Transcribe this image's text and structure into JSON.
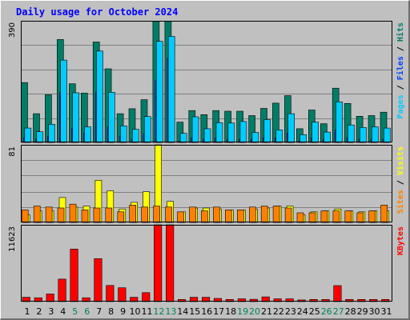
{
  "chart_data": {
    "type": "bar",
    "title": "Daily usage for October 2024",
    "days": [
      "1",
      "2",
      "3",
      "4",
      "5",
      "6",
      "7",
      "8",
      "9",
      "10",
      "11",
      "12",
      "13",
      "14",
      "15",
      "16",
      "17",
      "18",
      "19",
      "20",
      "21",
      "22",
      "23",
      "24",
      "25",
      "26",
      "27",
      "28",
      "29",
      "30",
      "31"
    ],
    "weekend_days": [
      "5",
      "6",
      "12",
      "13",
      "19",
      "20",
      "26",
      "27"
    ],
    "panels": [
      {
        "id": "top",
        "max_label": "390",
        "ylim": [
          0,
          390
        ],
        "grid_lines": [
          78,
          156,
          234,
          312
        ],
        "right_label_parts": [
          {
            "text": "Pages",
            "color": "#00ccff"
          },
          {
            "text": " / ",
            "color": "#000000"
          },
          {
            "text": "Files",
            "color": "#0040ff"
          },
          {
            "text": " / ",
            "color": "#000000"
          },
          {
            "text": "Hits",
            "color": "#007d66"
          }
        ],
        "series": [
          {
            "name": "Hits",
            "color": "#007d66",
            "values": [
              192,
              92,
              153,
              330,
              188,
              158,
              322,
              236,
              92,
              108,
              137,
              388,
              388,
              65,
              102,
              89,
              102,
              100,
              100,
              86,
              109,
              126,
              150,
              44,
              104,
              60,
              174,
              125,
              84,
              86,
              97
            ]
          },
          {
            "name": "Files",
            "color": "#0040ff",
            "values": [
              15,
              10,
              20,
              160,
              45,
              30,
              160,
              50,
              20,
              10,
              30,
              200,
              270,
              5,
              15,
              10,
              15,
              10,
              10,
              10,
              15,
              15,
              30,
              5,
              15,
              10,
              40,
              15,
              10,
              10,
              10
            ]
          },
          {
            "name": "Pages",
            "color": "#00ccff",
            "values": [
              46,
              34,
              58,
              264,
              159,
              50,
              293,
              161,
              53,
              42,
              83,
              324,
              340,
              29,
              82,
              44,
              63,
              62,
              67,
              32,
              73,
              40,
              92,
              25,
              65,
              33,
              130,
              56,
              48,
              50,
              46
            ]
          }
        ]
      },
      {
        "id": "middle",
        "max_label": "81",
        "ylim": [
          0,
          81
        ],
        "grid_lines": [
          16,
          32,
          49,
          65
        ],
        "right_label_parts": [
          {
            "text": "Sites",
            "color": "#ff8000"
          },
          {
            "text": " / ",
            "color": "#000000"
          },
          {
            "text": "Visits",
            "color": "#ffff00"
          }
        ],
        "series": [
          {
            "name": "Visits",
            "color": "#ffff00",
            "values": [
              8,
              12,
              12,
              26,
              16,
              17,
              44,
              33,
              14,
              21,
              32,
              81,
              22,
              11,
              15,
              15,
              14,
              13,
              13,
              14,
              15,
              17,
              17,
              8,
              11,
              12,
              14,
              12,
              11,
              12,
              12
            ]
          },
          {
            "name": "Sites",
            "color": "#ff8000",
            "values": [
              13,
              17,
              16,
              15,
              19,
              13,
              15,
              15,
              11,
              18,
              16,
              17,
              16,
              11,
              16,
              12,
              16,
              13,
              13,
              16,
              17,
              17,
              15,
              10,
              10,
              12,
              12,
              12,
              10,
              12,
              18
            ]
          }
        ]
      },
      {
        "id": "bottom",
        "max_label": "11623",
        "ylim": [
          0,
          11623
        ],
        "grid_lines": [],
        "right_label_parts": [
          {
            "text": "KBytes",
            "color": "#ff0000"
          }
        ],
        "series": [
          {
            "name": "KBytes",
            "color": "#ff0000",
            "values": [
              650,
              580,
              1150,
              3400,
              7950,
              580,
              6500,
              2450,
              2100,
              650,
              1350,
              11623,
              11623,
              330,
              650,
              650,
              480,
              330,
              420,
              350,
              720,
              420,
              420,
              250,
              330,
              330,
              2420,
              330,
              330,
              330,
              330
            ]
          }
        ]
      }
    ]
  },
  "colors": {
    "frame_background": "#c0c0c0",
    "plot_background": "#c0c0c0",
    "grid": "#808080",
    "title": "#0000ff",
    "weekday_label": "#000000",
    "weekend_label": "#00805c"
  }
}
